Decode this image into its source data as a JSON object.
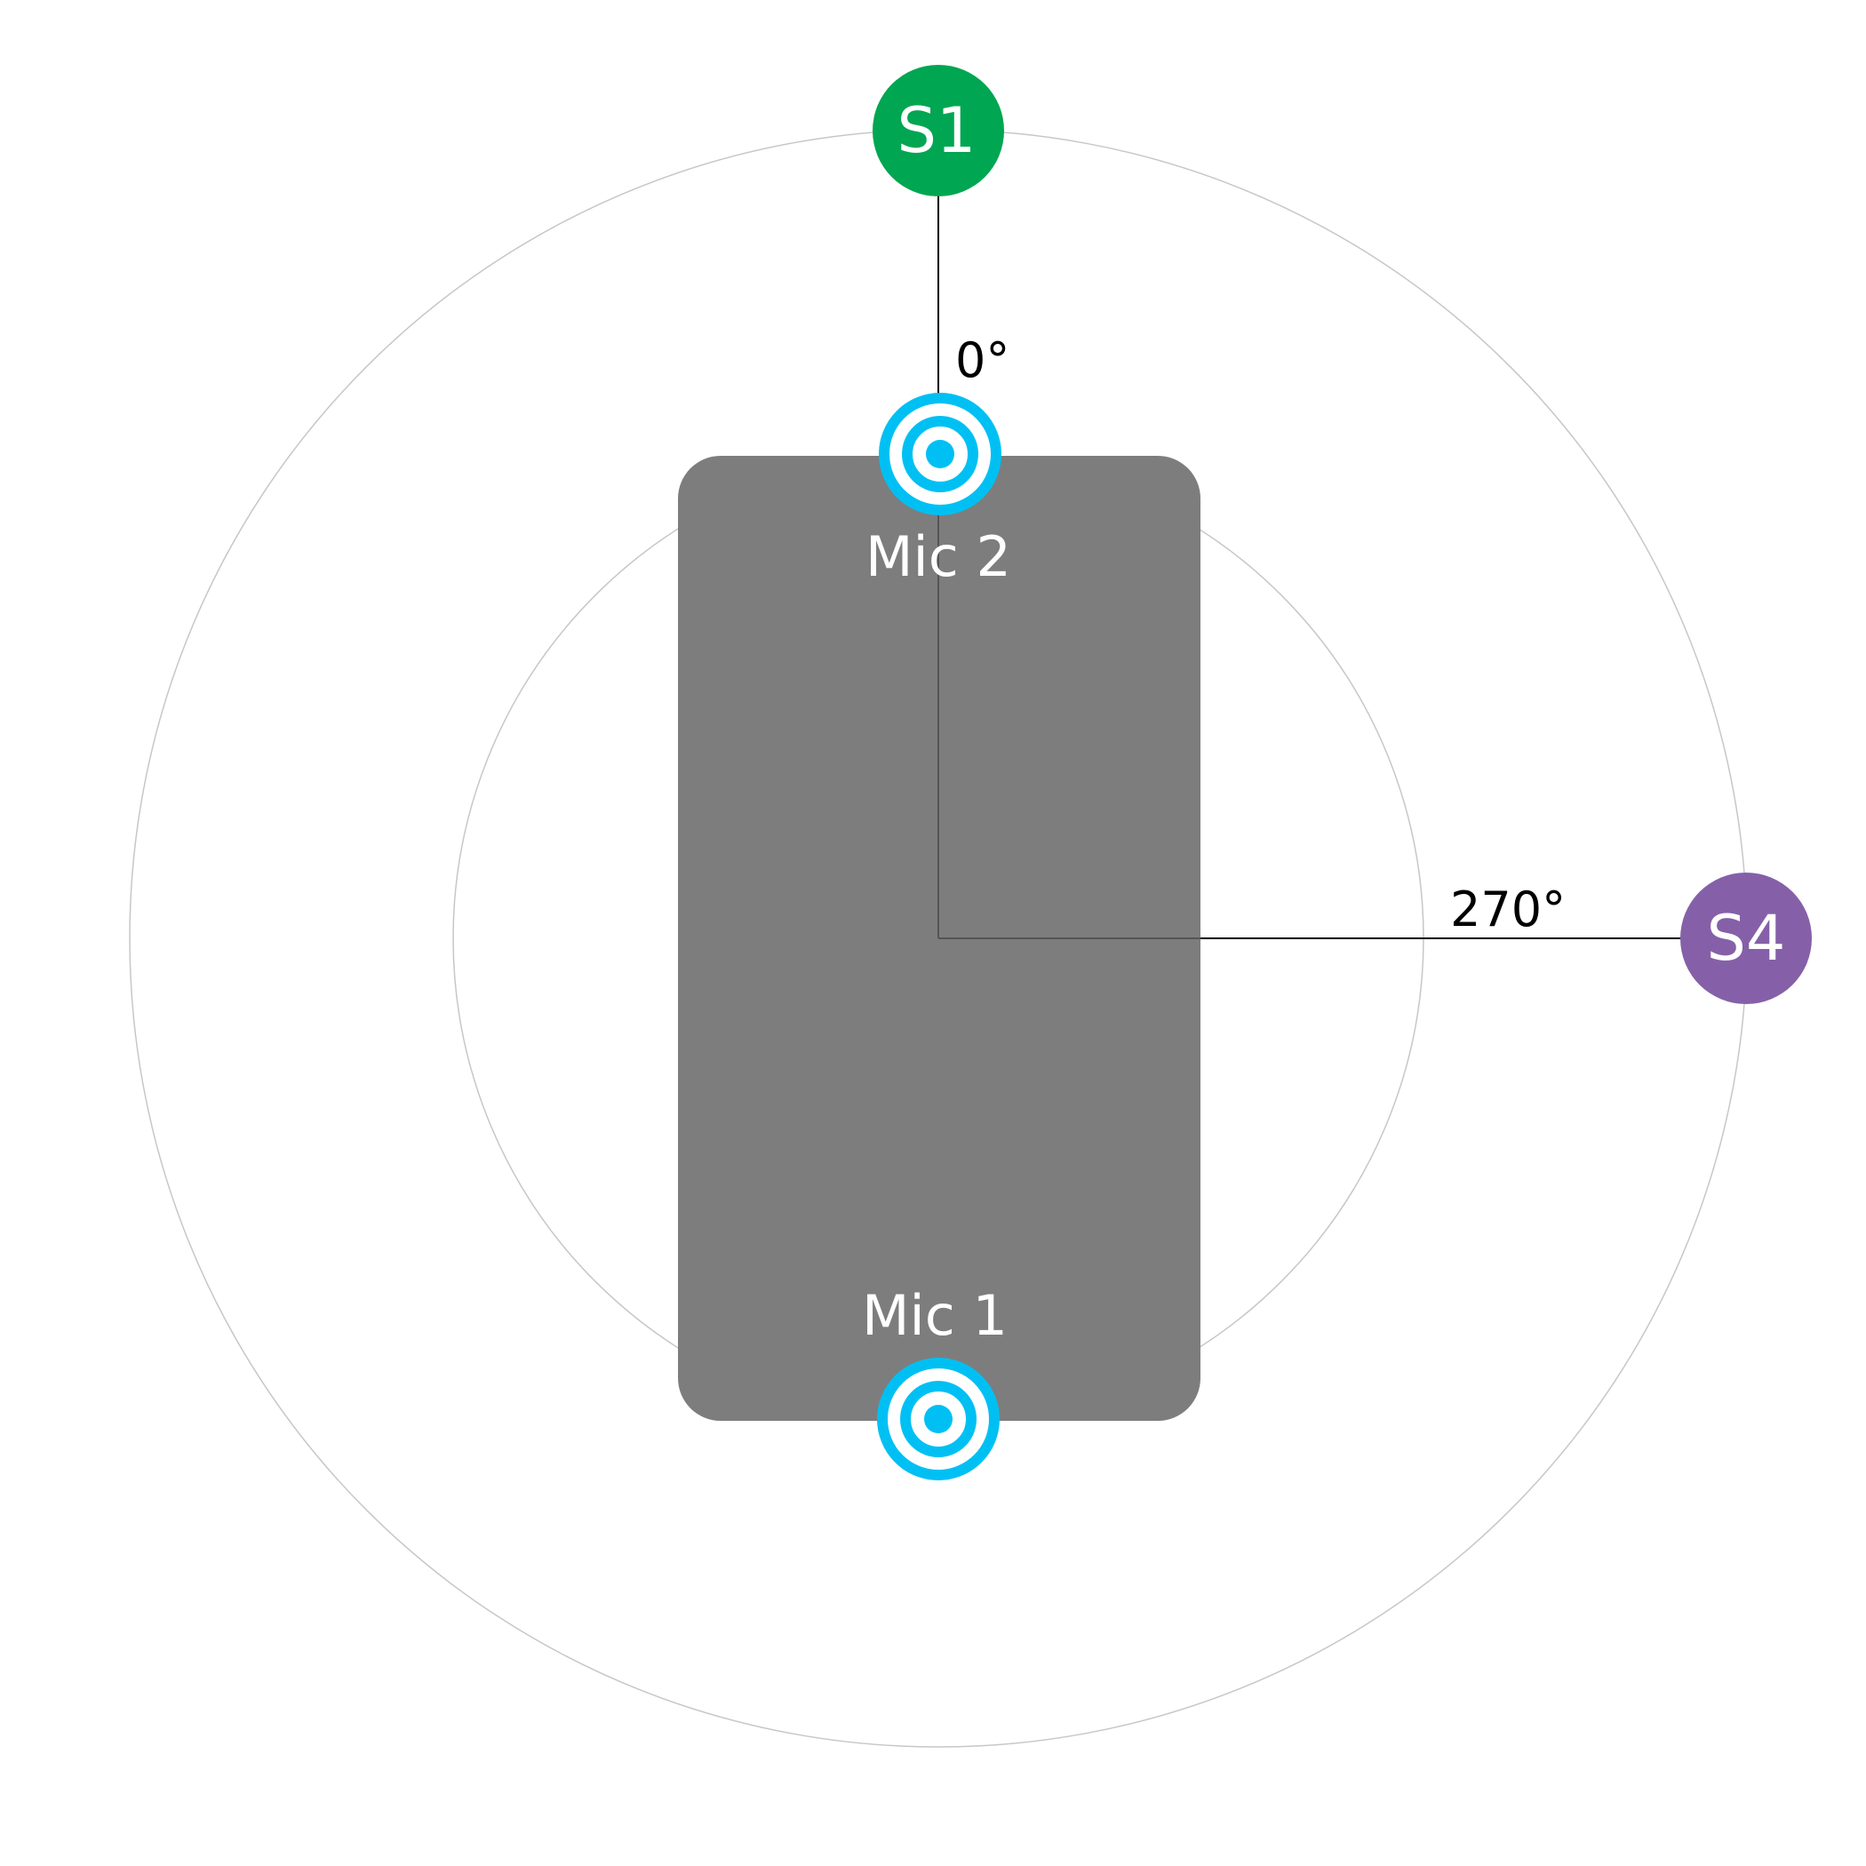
{
  "colors": {
    "background": "#ffffff",
    "ring_stroke": "#c7c7c7",
    "device_fill": "#7a7a7a",
    "mic_color": "#00c0f3",
    "source_s1": "#00a651",
    "source_s4": "#8560a8",
    "axis_line": "#000000",
    "angle_text": "#000000",
    "mic_label_text": "#ffffff",
    "source_label_text": "#ffffff"
  },
  "icons": {
    "microphone": "concentric-rings-icon"
  },
  "sources": {
    "s1": {
      "label": "S1",
      "angle_label": "0°"
    },
    "s4": {
      "label": "S4",
      "angle_label": "270°"
    }
  },
  "mics": {
    "mic1": {
      "label": "Mic 1"
    },
    "mic2": {
      "label": "Mic 2"
    }
  }
}
